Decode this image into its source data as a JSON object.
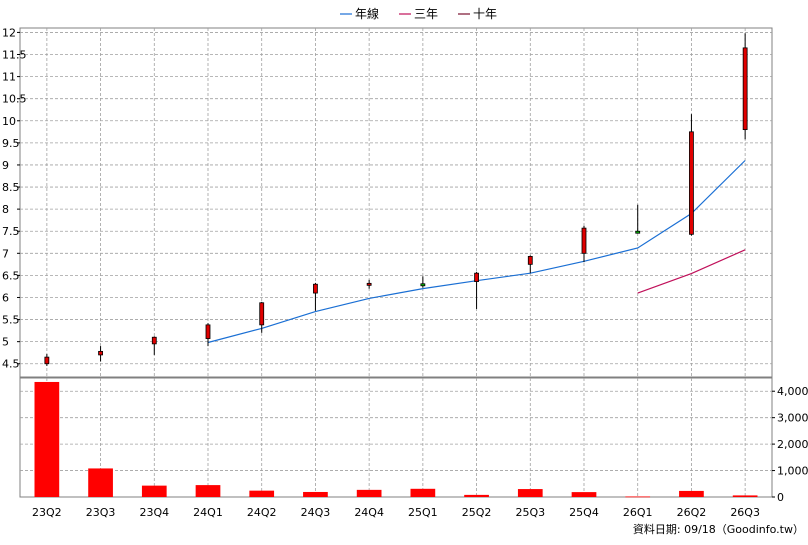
{
  "chart_data": {
    "type": "candlestick+bar",
    "categories": [
      "23Q2",
      "23Q3",
      "23Q4",
      "24Q1",
      "24Q2",
      "24Q3",
      "24Q4",
      "25Q1",
      "25Q2",
      "25Q3",
      "25Q4",
      "26Q1",
      "26Q2",
      "26Q3"
    ],
    "legend": [
      {
        "name": "年線",
        "color": "#1a6fd4"
      },
      {
        "name": "三年",
        "color": "#c0105a"
      },
      {
        "name": "十年",
        "color": "#7a1030"
      }
    ],
    "price_axis": {
      "ylim": [
        4.2,
        12.1
      ],
      "ticks": [
        4.5,
        5,
        5.5,
        6,
        6.5,
        7,
        7.5,
        8,
        8.5,
        9,
        9.5,
        10,
        10.5,
        11,
        11.5,
        12
      ],
      "tick_labels": [
        "4.5",
        "5",
        "5.5",
        "6",
        "6.5",
        "7",
        "7.5",
        "8",
        "8.5",
        "9",
        "9.5",
        "10",
        "10.5",
        "11",
        "11.5",
        "12"
      ]
    },
    "volume_axis": {
      "ylim": [
        0,
        4500
      ],
      "ticks": [
        0,
        1000,
        2000,
        3000,
        4000
      ],
      "tick_labels": [
        "0",
        "1,000",
        "2,000",
        "3,000",
        "4,000"
      ]
    },
    "candles": [
      {
        "open": 4.5,
        "close": 4.65,
        "high": 4.72,
        "low": 4.45,
        "color": "red"
      },
      {
        "open": 4.7,
        "close": 4.78,
        "high": 4.9,
        "low": 4.55,
        "color": "red"
      },
      {
        "open": 4.95,
        "close": 5.1,
        "high": 5.12,
        "low": 4.7,
        "color": "red"
      },
      {
        "open": 5.07,
        "close": 5.38,
        "high": 5.42,
        "low": 4.9,
        "color": "red"
      },
      {
        "open": 5.38,
        "close": 5.88,
        "high": 5.9,
        "low": 5.2,
        "color": "red"
      },
      {
        "open": 6.1,
        "close": 6.3,
        "high": 6.33,
        "low": 5.7,
        "color": "red"
      },
      {
        "open": 6.28,
        "close": 6.32,
        "high": 6.4,
        "low": 6.2,
        "color": "red"
      },
      {
        "open": 6.27,
        "close": 6.31,
        "high": 6.48,
        "low": 6.22,
        "color": "green"
      },
      {
        "open": 6.36,
        "close": 6.55,
        "high": 6.58,
        "low": 5.74,
        "color": "red"
      },
      {
        "open": 6.75,
        "close": 6.93,
        "high": 6.95,
        "low": 6.55,
        "color": "red"
      },
      {
        "open": 7.0,
        "close": 7.57,
        "high": 7.62,
        "low": 6.8,
        "color": "red"
      },
      {
        "open": 7.46,
        "close": 7.5,
        "high": 8.1,
        "low": 7.45,
        "color": "green"
      },
      {
        "open": 7.43,
        "close": 9.75,
        "high": 10.15,
        "low": 7.4,
        "color": "red"
      },
      {
        "open": 9.8,
        "close": 11.65,
        "high": 11.98,
        "low": 9.58,
        "color": "red"
      }
    ],
    "series": [
      {
        "name": "年線",
        "values": [
          null,
          null,
          null,
          4.98,
          5.3,
          5.68,
          5.98,
          6.2,
          6.38,
          6.55,
          6.82,
          7.12,
          7.9,
          9.1
        ]
      },
      {
        "name": "三年",
        "values": [
          null,
          null,
          null,
          null,
          null,
          null,
          null,
          null,
          null,
          null,
          null,
          6.1,
          6.54,
          7.08
        ]
      }
    ],
    "volume": [
      4350,
      1080,
      430,
      450,
      240,
      190,
      270,
      310,
      80,
      300,
      185,
      20,
      230,
      60
    ],
    "grid": true,
    "legend_position": "top-center",
    "footer_text": "資料日期: 09/18（Goodinfo.tw）"
  }
}
